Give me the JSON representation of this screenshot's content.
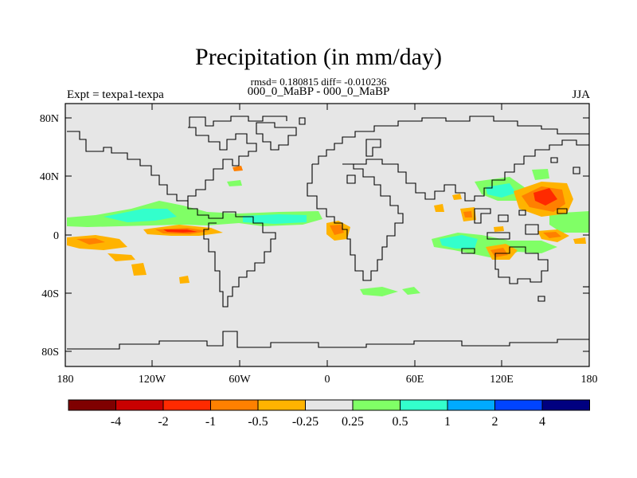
{
  "title": "Precipitation (in mm/day)",
  "stats": "rmsd= 0.180815 diff= -0.010236",
  "experiment_title": "000_0_MaBP - 000_0_MaBP",
  "left_label": "Expt = texpa1-texpa",
  "right_label": "JJA",
  "lat_ticks": [
    "80N",
    "40N",
    "0",
    "40S",
    "80S"
  ],
  "lon_ticks": [
    "180",
    "120W",
    "60W",
    "0",
    "60E",
    "120E",
    "180"
  ],
  "colorbar": {
    "labels": [
      "-4",
      "-2",
      "-1",
      "-0.5",
      "-0.25",
      "0.25",
      "0.5",
      "1",
      "2",
      "4"
    ],
    "colors": [
      "#7f0000",
      "#c80000",
      "#ff2a00",
      "#ff8000",
      "#ffb300",
      "#e6e6e6",
      "#80ff66",
      "#33ffcc",
      "#00aaff",
      "#0044ff",
      "#000080"
    ]
  },
  "colors": {
    "background": "#e6e6e6",
    "coast": "#000000"
  }
}
